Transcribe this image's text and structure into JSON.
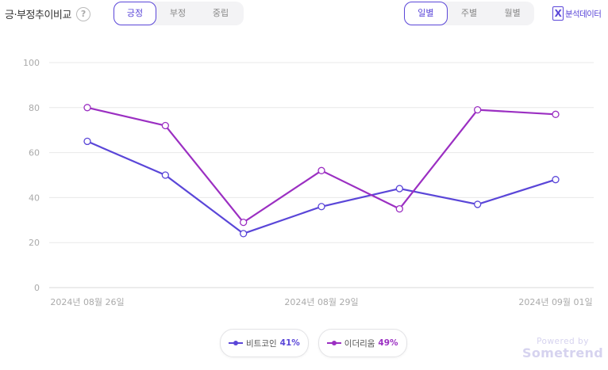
{
  "header": {
    "title": "긍·부정추이비교",
    "help": "?",
    "sentiment_tabs": [
      "긍정",
      "부정",
      "중립"
    ],
    "sentiment_active": 0,
    "period_tabs": [
      "일별",
      "주별",
      "월별"
    ],
    "period_active": 0,
    "analysis_label": "분석데이터"
  },
  "chart_data": {
    "type": "line",
    "x": [
      "2024년 08월 26일",
      "2024년 08월 27일",
      "2024년 08월 28일",
      "2024년 08월 29일",
      "2024년 08월 30일",
      "2024년 08월 31일",
      "2024년 09월 01일"
    ],
    "x_tick_labels": [
      "2024년 08월 26일",
      "2024년 08월 29일",
      "2024년 09월 01일"
    ],
    "ylim": [
      0,
      100
    ],
    "y_ticks": [
      0,
      20,
      40,
      60,
      80,
      100
    ],
    "grid": true,
    "legend_position": "bottom-center",
    "series": [
      {
        "name": "비트코인",
        "share": "41%",
        "color": "#5a46d8",
        "values": [
          65,
          50,
          24,
          36,
          44,
          37,
          48
        ]
      },
      {
        "name": "이더리움",
        "share": "49%",
        "color": "#9b2fc2",
        "values": [
          80,
          72,
          29,
          52,
          35,
          79,
          77
        ]
      }
    ]
  },
  "watermark": {
    "line1": "Powered by",
    "line2": "Sometrend"
  }
}
